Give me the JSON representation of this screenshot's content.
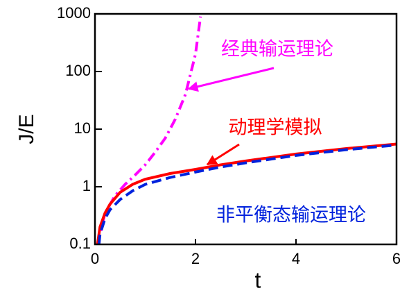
{
  "chart_data": {
    "type": "line",
    "xlabel": "t",
    "ylabel": "J/E",
    "xlim": [
      0,
      6
    ],
    "xticks": [
      0,
      2,
      4,
      6
    ],
    "ylim": [
      0.1,
      1000
    ],
    "yticks": [
      0.1,
      1,
      10,
      100,
      1000
    ],
    "yscale": "log",
    "series": [
      {
        "name": "经典输运理论",
        "color": "#ff00ff",
        "line_style": "dashdot",
        "x": [
          0.05,
          0.2,
          0.4,
          0.6,
          0.8,
          1.0,
          1.2,
          1.4,
          1.6,
          1.8,
          2.0,
          2.1
        ],
        "values": [
          0.1,
          0.35,
          0.7,
          1.1,
          1.6,
          2.4,
          4,
          7,
          15,
          40,
          200,
          900
        ]
      },
      {
        "name": "动理学模拟",
        "color": "#ff0000",
        "line_style": "solid",
        "x": [
          0.05,
          0.1,
          0.2,
          0.3,
          0.5,
          0.75,
          1,
          1.5,
          2,
          2.5,
          3,
          4,
          5,
          6
        ],
        "values": [
          0.1,
          0.2,
          0.35,
          0.5,
          0.8,
          1.1,
          1.35,
          1.7,
          2.0,
          2.4,
          2.8,
          3.7,
          4.6,
          5.5
        ]
      },
      {
        "name": "非平衡态输运理论",
        "color": "#0022dd",
        "line_style": "dashed",
        "x": [
          0.08,
          0.1,
          0.2,
          0.3,
          0.5,
          0.75,
          1,
          1.5,
          2,
          2.5,
          3,
          4,
          5,
          6
        ],
        "values": [
          0.1,
          0.15,
          0.28,
          0.4,
          0.6,
          0.85,
          1.1,
          1.45,
          1.8,
          2.2,
          2.6,
          3.5,
          4.4,
          5.3
        ]
      }
    ]
  }
}
